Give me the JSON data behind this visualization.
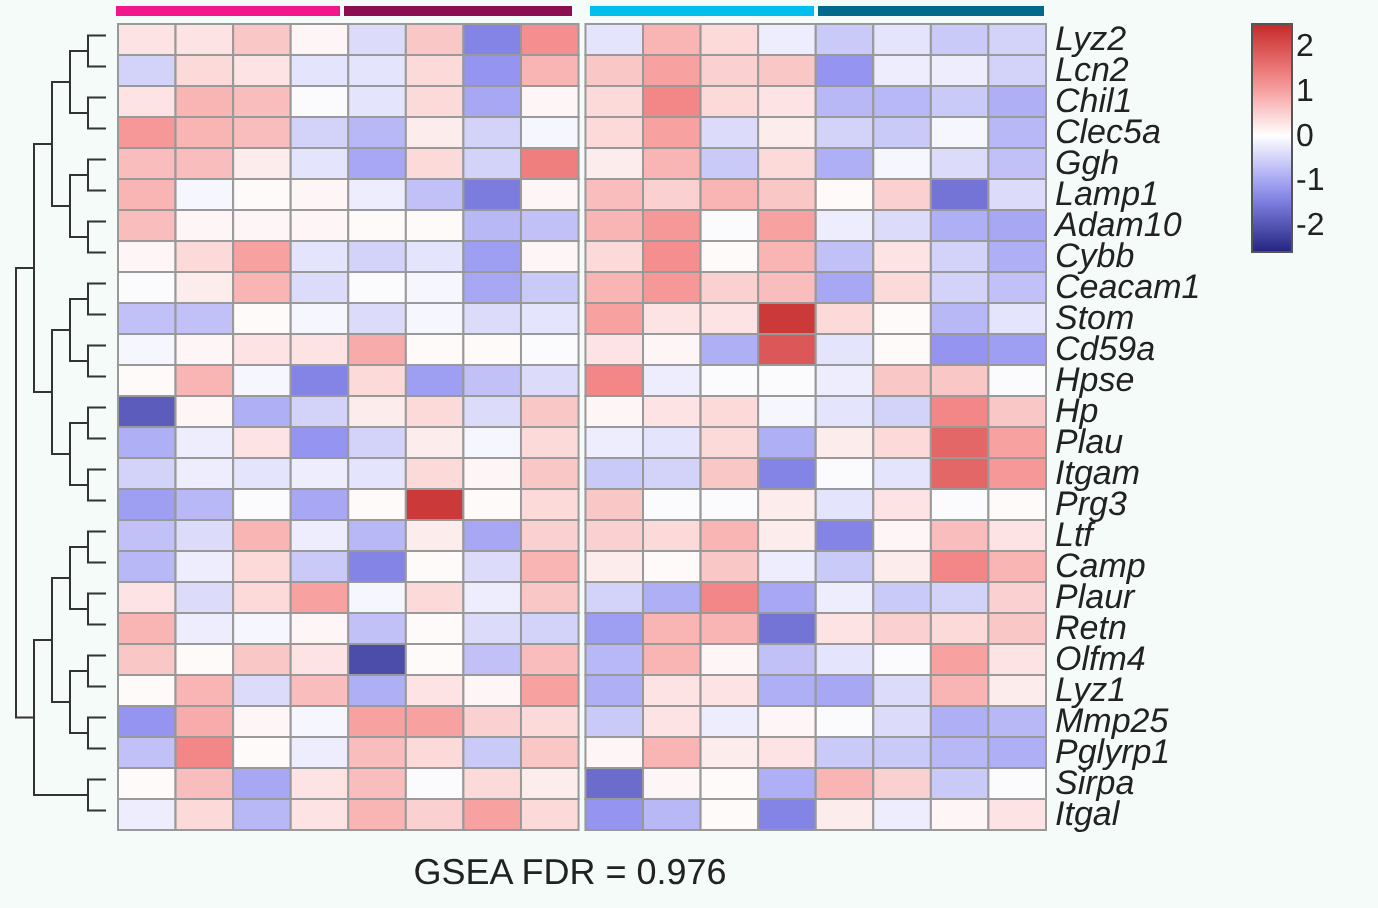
{
  "chart_data": {
    "type": "heatmap",
    "categories": [
      null,
      null,
      null,
      null,
      null,
      null,
      null,
      null,
      null,
      null,
      null,
      null,
      null,
      null,
      null,
      null
    ],
    "y_categories": [
      "Lyz2",
      "Lcn2",
      "Chil1",
      "Clec5a",
      "Ggh",
      "Lamp1",
      "Adam10",
      "Cybb",
      "Ceacam1",
      "Stom",
      "Cd59a",
      "Hpse",
      "Hp",
      "Plau",
      "Itgam",
      "Prg3",
      "Ltf",
      "Camp",
      "Plaur",
      "Retn",
      "Olfm4",
      "Lyz1",
      "Mmp25",
      "Pglyrp1",
      "Sirpa",
      "Itgal"
    ],
    "tick_labels": "y",
    "clim": [
      -2.6,
      2.5
    ],
    "cticks": [
      -2,
      -1,
      0,
      1,
      2
    ],
    "annotations": [
      "GSEA FDR = 0.976"
    ],
    "cells": [
      [
        0.3,
        0.3,
        0.6,
        0.1,
        -0.4,
        0.6,
        -1.4,
        1.2,
        -0.3,
        0.8,
        0.4,
        -0.2,
        -0.6,
        -0.3,
        -0.6,
        -0.5
      ],
      [
        -0.5,
        0.4,
        0.3,
        -0.3,
        -0.3,
        0.4,
        -1.2,
        0.8,
        0.6,
        1.0,
        0.5,
        0.6,
        -1.2,
        -0.2,
        -0.2,
        -0.5
      ],
      [
        0.3,
        0.8,
        0.7,
        -0.05,
        -0.3,
        0.4,
        -1.0,
        0.1,
        0.4,
        1.3,
        0.4,
        0.3,
        -0.8,
        -0.8,
        -0.6,
        -0.9
      ],
      [
        1.1,
        0.8,
        0.7,
        -0.5,
        -0.8,
        0.2,
        -0.5,
        -0.1,
        0.4,
        1.0,
        -0.4,
        0.2,
        -0.5,
        -0.6,
        -0.1,
        -0.8
      ],
      [
        0.7,
        0.7,
        0.2,
        -0.3,
        -1.0,
        0.4,
        -0.5,
        1.4,
        0.2,
        0.8,
        -0.6,
        0.4,
        -0.9,
        -0.1,
        -0.4,
        -0.7
      ],
      [
        0.8,
        -0.1,
        0.05,
        0.1,
        -0.2,
        -0.7,
        -1.5,
        0.1,
        0.7,
        0.5,
        0.8,
        0.6,
        0.05,
        0.5,
        -1.6,
        -0.4
      ],
      [
        0.7,
        0.1,
        0.1,
        0.1,
        0.05,
        0.05,
        -0.8,
        -0.7,
        0.8,
        1.1,
        -0.05,
        1.0,
        -0.2,
        -0.4,
        -0.9,
        -1.0
      ],
      [
        0.1,
        0.4,
        1.0,
        -0.3,
        -0.5,
        -0.3,
        -1.1,
        0.1,
        0.4,
        1.2,
        0.05,
        0.8,
        -0.7,
        0.3,
        -0.5,
        -0.9
      ],
      [
        -0.05,
        0.2,
        0.8,
        -0.4,
        -0.05,
        -0.1,
        -1.0,
        -0.6,
        0.8,
        1.1,
        0.5,
        0.7,
        -1.0,
        0.4,
        -0.5,
        -0.7
      ],
      [
        -0.7,
        -0.7,
        0.05,
        -0.1,
        -0.4,
        -0.1,
        -0.4,
        -0.3,
        1.0,
        0.3,
        0.3,
        2.3,
        0.4,
        0.05,
        -0.8,
        -0.3
      ],
      [
        -0.1,
        0.1,
        0.3,
        0.3,
        0.9,
        0.05,
        0.05,
        -0.05,
        0.3,
        0.1,
        -0.9,
        1.9,
        -0.3,
        0.05,
        -1.2,
        -1.1
      ],
      [
        0.05,
        0.8,
        -0.1,
        -1.4,
        0.4,
        -1.1,
        -0.7,
        -0.4,
        1.3,
        -0.2,
        -0.05,
        -0.05,
        -0.2,
        0.6,
        0.6,
        -0.05
      ],
      [
        -1.9,
        0.1,
        -0.9,
        -0.5,
        0.2,
        0.4,
        -0.4,
        0.6,
        0.1,
        0.3,
        0.4,
        -0.1,
        -0.3,
        -0.5,
        1.3,
        0.6
      ],
      [
        -0.9,
        -0.2,
        0.3,
        -1.2,
        -0.5,
        0.2,
        -0.1,
        0.4,
        -0.2,
        -0.3,
        0.4,
        -0.9,
        0.2,
        0.4,
        1.7,
        1.0
      ],
      [
        -0.5,
        -0.2,
        -0.3,
        -0.2,
        -0.3,
        0.4,
        0.1,
        0.6,
        -0.6,
        -0.5,
        0.6,
        -1.4,
        -0.05,
        -0.3,
        1.7,
        1.1
      ],
      [
        -1.1,
        -0.8,
        -0.05,
        -1.0,
        0.05,
        2.3,
        0.05,
        0.4,
        0.6,
        -0.05,
        -0.05,
        0.2,
        -0.3,
        0.3,
        -0.05,
        0.05
      ],
      [
        -0.7,
        -0.4,
        0.8,
        -0.2,
        -0.8,
        0.2,
        -1.0,
        0.5,
        0.5,
        0.4,
        0.8,
        0.2,
        -1.4,
        0.1,
        0.7,
        0.3
      ],
      [
        -0.8,
        -0.2,
        0.4,
        -0.6,
        -1.4,
        0.05,
        -0.4,
        0.8,
        0.2,
        0.05,
        0.6,
        -0.2,
        -0.6,
        0.2,
        1.3,
        0.8
      ],
      [
        0.3,
        -0.4,
        0.4,
        1.0,
        -0.1,
        0.4,
        -0.2,
        0.6,
        -0.5,
        -0.9,
        1.3,
        -1.0,
        -0.2,
        -0.6,
        -0.5,
        0.5
      ],
      [
        0.8,
        -0.2,
        -0.1,
        0.1,
        -0.7,
        0.05,
        -0.4,
        -0.5,
        -1.1,
        0.8,
        0.8,
        -1.6,
        0.3,
        0.5,
        0.4,
        0.6
      ],
      [
        0.6,
        0.05,
        0.6,
        0.3,
        -2.1,
        0.05,
        -0.7,
        0.7,
        -0.8,
        0.8,
        0.1,
        -0.7,
        -0.3,
        -0.05,
        1.0,
        0.3
      ],
      [
        0.05,
        0.8,
        -0.4,
        0.7,
        -0.9,
        0.3,
        0.1,
        1.0,
        -0.9,
        0.3,
        0.3,
        -0.9,
        -1.0,
        -0.4,
        0.8,
        0.2
      ],
      [
        -1.2,
        0.9,
        0.1,
        -0.1,
        1.0,
        1.0,
        0.5,
        0.4,
        -0.6,
        0.3,
        -0.2,
        0.1,
        -0.05,
        -0.4,
        -0.9,
        -0.8
      ],
      [
        -0.7,
        1.3,
        0.05,
        -0.2,
        0.7,
        0.4,
        -0.6,
        0.6,
        0.1,
        0.8,
        0.2,
        0.3,
        -0.6,
        -0.6,
        -0.8,
        -0.9
      ],
      [
        0.05,
        0.7,
        -1.0,
        0.3,
        0.7,
        -0.05,
        0.4,
        0.2,
        -1.7,
        0.1,
        0.05,
        -0.9,
        0.8,
        0.5,
        -0.6,
        -0.05
      ],
      [
        -0.2,
        0.4,
        -0.8,
        0.3,
        0.8,
        0.5,
        1.0,
        0.4,
        -1.2,
        -0.8,
        0.05,
        -1.4,
        0.2,
        -0.2,
        0.1,
        0.3
      ]
    ]
  }
}
